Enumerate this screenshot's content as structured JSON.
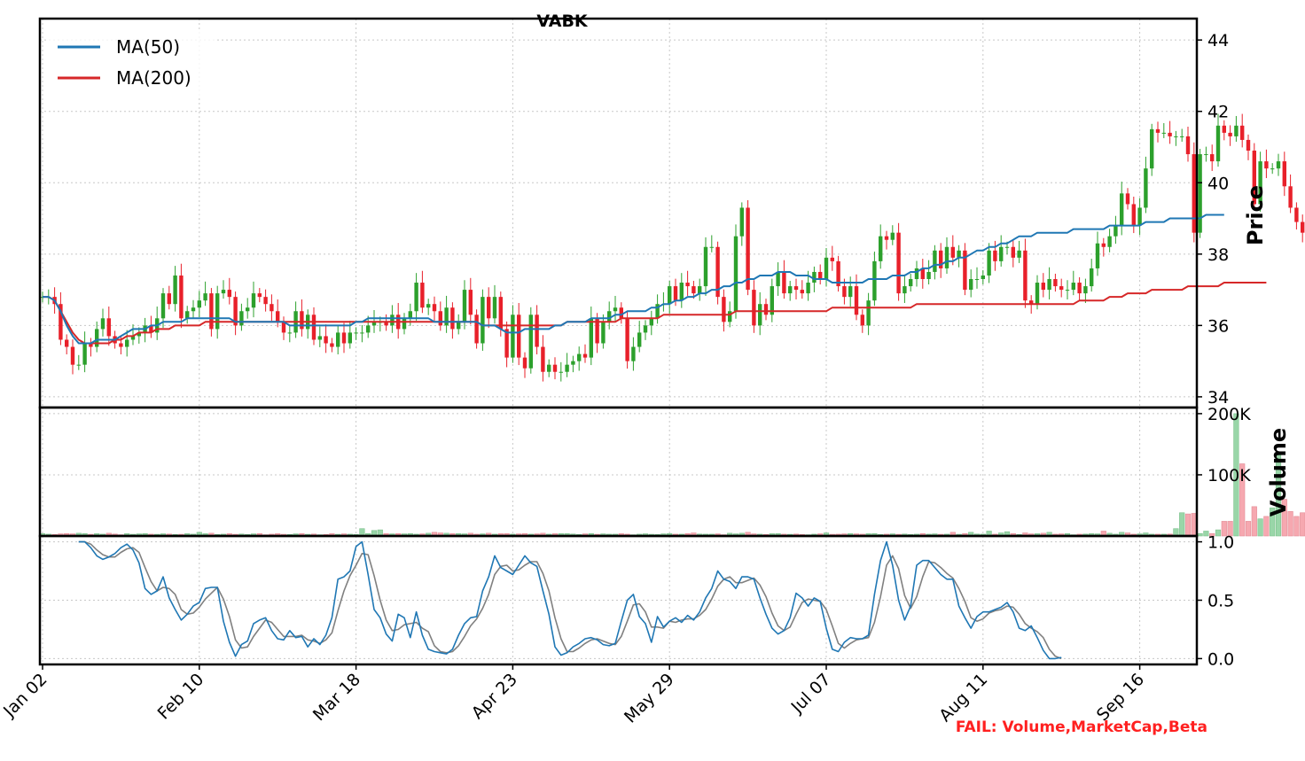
{
  "chart_data": {
    "type": "candlestick",
    "title": "VABK",
    "x_tick_labels": [
      "Jan 02",
      "Feb 10",
      "Mar 18",
      "Apr 23",
      "May 29",
      "Jul 07",
      "Aug 11",
      "Sep 16"
    ],
    "x_tick_sessions": [
      0,
      26,
      52,
      78,
      104,
      130,
      156,
      182
    ],
    "colors": {
      "up": "#2ca02c",
      "down": "#e8202a",
      "ma50": "#1f77b4",
      "ma200": "#d62728",
      "stoch_k": "#1f77b4",
      "stoch_d": "#808080",
      "failure": "#ff2020"
    },
    "price_panel": {
      "ylabel": "Price",
      "ylim": [
        33.7,
        44.6
      ],
      "yticks": [
        34,
        36,
        38,
        40,
        42,
        44
      ],
      "legend": {
        "placement": "top-left",
        "entries": [
          "MA(50)",
          "MA(200)"
        ]
      },
      "closes": [
        36.8,
        36.8,
        36.6,
        35.6,
        35.4,
        34.9,
        34.9,
        35.5,
        35.4,
        35.9,
        36.2,
        35.7,
        35.5,
        35.4,
        35.6,
        35.7,
        35.8,
        36.0,
        35.8,
        36.2,
        36.9,
        36.6,
        37.4,
        36.2,
        36.4,
        36.5,
        36.7,
        36.9,
        35.9,
        36.9,
        37.0,
        36.8,
        36.0,
        36.4,
        36.5,
        36.9,
        36.8,
        36.6,
        36.4,
        36.1,
        35.8,
        35.8,
        36.4,
        35.9,
        36.3,
        35.6,
        35.7,
        35.5,
        35.4,
        35.8,
        35.5,
        35.8,
        35.8,
        35.8,
        36.0,
        36.1,
        36.1,
        36.0,
        36.3,
        35.9,
        36.2,
        36.4,
        37.2,
        36.5,
        36.6,
        36.4,
        36.0,
        36.5,
        35.9,
        36.1,
        37.0,
        36.3,
        35.5,
        36.8,
        36.2,
        36.8,
        35.9,
        35.1,
        36.3,
        35.1,
        34.8,
        36.3,
        35.4,
        34.7,
        34.9,
        34.7,
        34.7,
        34.9,
        35.0,
        35.2,
        35.1,
        36.2,
        35.5,
        36.1,
        36.4,
        36.5,
        36.2,
        35.0,
        35.4,
        35.8,
        36.0,
        36.2,
        36.6,
        36.6,
        37.1,
        36.7,
        37.2,
        37.1,
        36.9,
        37.1,
        38.2,
        38.2,
        36.8,
        36.1,
        36.4,
        38.5,
        39.3,
        37.0,
        36.0,
        36.6,
        36.3,
        37.1,
        37.5,
        36.9,
        37.1,
        37.0,
        36.9,
        37.2,
        37.5,
        37.3,
        37.9,
        37.8,
        37.1,
        36.8,
        37.1,
        36.3,
        36.0,
        36.7,
        37.8,
        38.5,
        38.4,
        38.6,
        36.9,
        37.1,
        37.3,
        37.6,
        37.3,
        37.5,
        38.1,
        37.6,
        38.2,
        37.9,
        38.1,
        37.0,
        37.3,
        37.3,
        37.4,
        38.1,
        37.8,
        38.2,
        38.2,
        37.9,
        38.1,
        36.7,
        36.6,
        37.2,
        37.0,
        37.3,
        37.1,
        37.0,
        37.0,
        37.2,
        36.9,
        37.1,
        37.6,
        38.3,
        38.2,
        38.5,
        38.8,
        39.7,
        39.4,
        38.8,
        39.3,
        40.4,
        41.5,
        41.4,
        41.4,
        41.3,
        41.3,
        41.3,
        40.8,
        38.6,
        40.8,
        40.8,
        40.6,
        41.6,
        41.4,
        41.3,
        41.6,
        41.2,
        40.9,
        39.4,
        40.6,
        40.4,
        40.4,
        40.6,
        39.9,
        39.3,
        38.9,
        38.6,
        38.8,
        38.9,
        38.4,
        38.3,
        38.6
      ],
      "ma50": [
        36.8,
        36.8,
        36.7,
        36.4,
        36.0,
        35.7,
        35.5,
        35.5,
        35.5,
        35.6,
        35.6,
        35.6,
        35.6,
        35.7,
        35.8,
        35.9,
        35.9,
        35.9,
        36.0,
        36.0,
        36.1,
        36.1,
        36.1,
        36.1,
        36.2,
        36.2,
        36.2,
        36.2,
        36.2,
        36.2,
        36.2,
        36.2,
        36.1,
        36.1,
        36.1,
        36.1,
        36.1,
        36.1,
        36.1,
        36.1,
        36.1,
        36.0,
        36.0,
        36.0,
        36.0,
        36.0,
        36.0,
        36.0,
        36.0,
        36.0,
        36.0,
        36.0,
        36.1,
        36.1,
        36.2,
        36.2,
        36.2,
        36.2,
        36.2,
        36.2,
        36.2,
        36.2,
        36.2,
        36.2,
        36.2,
        36.1,
        36.1,
        36.1,
        36.1,
        36.1,
        36.1,
        36.1,
        36.1,
        36.0,
        36.0,
        36.0,
        35.9,
        35.8,
        35.8,
        35.8,
        35.9,
        35.9,
        35.9,
        35.9,
        35.9,
        36.0,
        36.0,
        36.1,
        36.1,
        36.1,
        36.1,
        36.2,
        36.2,
        36.2,
        36.2,
        36.3,
        36.3,
        36.4,
        36.4,
        36.4,
        36.4,
        36.5,
        36.5,
        36.6,
        36.6,
        36.7,
        36.7,
        36.8,
        36.8,
        36.9,
        36.9,
        37.0,
        37.0,
        37.1,
        37.1,
        37.2,
        37.2,
        37.3,
        37.3,
        37.4,
        37.4,
        37.4,
        37.5,
        37.5,
        37.5,
        37.4,
        37.4,
        37.4,
        37.3,
        37.3,
        37.3,
        37.2,
        37.2,
        37.2,
        37.2,
        37.2,
        37.2,
        37.3,
        37.3,
        37.3,
        37.3,
        37.4,
        37.4,
        37.4,
        37.5,
        37.5,
        37.6,
        37.6,
        37.7,
        37.7,
        37.8,
        37.8,
        37.9,
        37.9,
        38.0,
        38.1,
        38.1,
        38.2,
        38.2,
        38.3,
        38.3,
        38.4,
        38.5,
        38.5,
        38.5,
        38.6,
        38.6,
        38.6,
        38.6,
        38.6,
        38.6,
        38.7,
        38.7,
        38.7,
        38.7,
        38.7,
        38.7,
        38.8,
        38.8,
        38.8,
        38.8,
        38.8,
        38.8,
        38.9,
        38.9,
        38.9,
        38.9,
        39.0,
        39.0,
        39.0,
        39.0,
        39.0,
        39.0,
        39.1,
        39.1,
        39.1,
        39.1
      ],
      "ma200": [
        36.8,
        36.8,
        36.7,
        36.4,
        36.1,
        35.8,
        35.6,
        35.5,
        35.5,
        35.5,
        35.5,
        35.5,
        35.6,
        35.6,
        35.7,
        35.7,
        35.8,
        35.8,
        35.8,
        35.9,
        35.9,
        35.9,
        36.0,
        36.0,
        36.0,
        36.0,
        36.0,
        36.1,
        36.1,
        36.1,
        36.1,
        36.1,
        36.1,
        36.1,
        36.1,
        36.1,
        36.1,
        36.1,
        36.1,
        36.1,
        36.1,
        36.1,
        36.1,
        36.1,
        36.1,
        36.1,
        36.1,
        36.1,
        36.1,
        36.1,
        36.1,
        36.1,
        36.1,
        36.1,
        36.1,
        36.1,
        36.1,
        36.1,
        36.1,
        36.1,
        36.1,
        36.1,
        36.1,
        36.1,
        36.1,
        36.1,
        36.1,
        36.1,
        36.1,
        36.1,
        36.1,
        36.1,
        36.1,
        36.0,
        36.0,
        36.0,
        36.0,
        36.0,
        36.0,
        36.0,
        36.0,
        36.0,
        36.0,
        36.0,
        36.0,
        36.0,
        36.0,
        36.1,
        36.1,
        36.1,
        36.1,
        36.1,
        36.1,
        36.1,
        36.1,
        36.1,
        36.2,
        36.2,
        36.2,
        36.2,
        36.2,
        36.2,
        36.2,
        36.3,
        36.3,
        36.3,
        36.3,
        36.3,
        36.3,
        36.3,
        36.3,
        36.3,
        36.3,
        36.3,
        36.3,
        36.4,
        36.4,
        36.4,
        36.4,
        36.4,
        36.4,
        36.4,
        36.4,
        36.4,
        36.4,
        36.4,
        36.4,
        36.4,
        36.4,
        36.4,
        36.4,
        36.5,
        36.5,
        36.5,
        36.5,
        36.5,
        36.5,
        36.5,
        36.5,
        36.5,
        36.5,
        36.5,
        36.5,
        36.5,
        36.5,
        36.6,
        36.6,
        36.6,
        36.6,
        36.6,
        36.6,
        36.6,
        36.6,
        36.6,
        36.6,
        36.6,
        36.6,
        36.6,
        36.6,
        36.6,
        36.6,
        36.6,
        36.6,
        36.6,
        36.6,
        36.6,
        36.6,
        36.6,
        36.6,
        36.6,
        36.6,
        36.6,
        36.7,
        36.7,
        36.7,
        36.7,
        36.7,
        36.8,
        36.8,
        36.8,
        36.9,
        36.9,
        36.9,
        36.9,
        37.0,
        37.0,
        37.0,
        37.0,
        37.0,
        37.0,
        37.1,
        37.1,
        37.1,
        37.1,
        37.1,
        37.1,
        37.2,
        37.2,
        37.2,
        37.2,
        37.2,
        37.2,
        37.2,
        37.2
      ]
    },
    "volume_panel": {
      "ylabel": "Volume",
      "ylim": [
        0,
        210000
      ],
      "yticks": [
        100000,
        200000
      ],
      "ytick_labels": [
        "100K",
        "200K"
      ],
      "values": [
        4000,
        3000,
        2500,
        3500,
        4000,
        3500,
        4500,
        4000,
        2800,
        3800,
        3000,
        4500,
        3200,
        2000,
        3800,
        2800,
        3500,
        4000,
        3000,
        2800,
        3600,
        3200,
        2500,
        2800,
        3800,
        3000,
        6000,
        3800,
        4500,
        2500,
        3000,
        3800,
        2800,
        3200,
        2500,
        3500,
        4000,
        2000,
        3000,
        3800,
        2800,
        2500,
        3500,
        4000,
        2800,
        3200,
        2000,
        2500,
        3800,
        2800,
        3500,
        3000,
        2500,
        12000,
        4000,
        9000,
        10000,
        4000,
        3500,
        4000,
        3500,
        4000,
        3000,
        3500,
        4500,
        6000,
        5000,
        4500,
        4000,
        4000,
        3500,
        4500,
        3000,
        3500,
        4500,
        3000,
        3800,
        4000,
        3000,
        3500,
        4000,
        3000,
        3500,
        4500,
        3000,
        3800,
        4000,
        4000,
        3200,
        2500,
        3500,
        4000,
        2800,
        3500,
        3000,
        3000,
        3800,
        3000,
        2000,
        3000,
        3600,
        2800,
        2500,
        3500,
        4000,
        3000,
        3000,
        4000,
        5000,
        3200,
        3000,
        3000,
        3500,
        2000,
        4500,
        3500,
        4500,
        6000,
        3500,
        3000,
        2500,
        3800,
        4000,
        3000,
        2800,
        3200,
        2500,
        2000,
        3000,
        3600,
        5000,
        2800,
        3000,
        3500,
        4000,
        3500,
        3000,
        3800,
        4000,
        2500,
        3000,
        3500,
        2800,
        3200,
        2500,
        3000,
        4000,
        3000,
        3500,
        2800,
        3000,
        6000,
        2800,
        4000,
        6000,
        3200,
        3000,
        8000,
        3000,
        5000,
        7000,
        4000,
        2500,
        5000,
        3500,
        3800,
        4500,
        6000,
        3000,
        3500,
        4000,
        2000,
        3000,
        3200,
        4000,
        3500,
        8000,
        4500,
        3000,
        6000,
        5000,
        3000,
        3500,
        5000,
        3000,
        3000,
        3000,
        3200,
        12000,
        38000,
        36000,
        37000,
        4000,
        8000,
        4000,
        10000,
        24000,
        24000,
        200000,
        118000,
        24000,
        48000,
        28000,
        32000,
        46000,
        132000,
        60000,
        40000,
        32000,
        38000,
        26000,
        20000,
        18000,
        20000,
        18000,
        12000,
        12000,
        88000,
        92000,
        28000,
        16000,
        14000,
        12000,
        8000,
        6000,
        4000
      ]
    },
    "stoch_panel": {
      "ylim": [
        -0.05,
        1.05
      ],
      "yticks": [
        0.0,
        0.5,
        1.0
      ],
      "ytick_labels": [
        "0.0",
        "0.5",
        "1.0"
      ],
      "k": [
        null,
        null,
        null,
        null,
        null,
        null,
        1.0,
        1.0,
        0.95,
        0.88,
        0.85,
        0.87,
        0.9,
        0.95,
        0.98,
        0.93,
        0.82,
        0.6,
        0.55,
        0.58,
        0.7,
        0.52,
        0.42,
        0.33,
        0.38,
        0.45,
        0.48,
        0.6,
        0.61,
        0.61,
        0.32,
        0.14,
        0.02,
        0.12,
        0.15,
        0.3,
        0.33,
        0.35,
        0.24,
        0.17,
        0.16,
        0.24,
        0.18,
        0.19,
        0.1,
        0.17,
        0.12,
        0.2,
        0.35,
        0.68,
        0.7,
        0.75,
        0.96,
        1.0,
        0.72,
        0.42,
        0.35,
        0.21,
        0.15,
        0.38,
        0.35,
        0.18,
        0.4,
        0.2,
        0.08,
        0.06,
        0.05,
        0.04,
        0.08,
        0.2,
        0.3,
        0.35,
        0.36,
        0.58,
        0.7,
        0.88,
        0.78,
        0.75,
        0.72,
        0.8,
        0.88,
        0.82,
        0.79,
        0.58,
        0.38,
        0.1,
        0.03,
        0.05,
        0.1,
        0.13,
        0.17,
        0.18,
        0.16,
        0.12,
        0.11,
        0.13,
        0.32,
        0.5,
        0.55,
        0.36,
        0.3,
        0.14,
        0.36,
        0.27,
        0.32,
        0.35,
        0.31,
        0.37,
        0.33,
        0.4,
        0.52,
        0.6,
        0.75,
        0.68,
        0.66,
        0.6,
        0.7,
        0.7,
        0.68,
        0.52,
        0.38,
        0.26,
        0.21,
        0.24,
        0.35,
        0.56,
        0.52,
        0.45,
        0.52,
        0.49,
        0.26,
        0.08,
        0.06,
        0.14,
        0.18,
        0.17,
        0.17,
        0.2,
        0.55,
        0.84,
        1.0,
        0.8,
        0.5,
        0.33,
        0.45,
        0.8,
        0.84,
        0.84,
        0.78,
        0.72,
        0.68,
        0.68,
        0.45,
        0.35,
        0.26,
        0.36,
        0.4,
        0.4,
        0.42,
        0.44,
        0.48,
        0.4,
        0.26,
        0.24,
        0.28,
        0.18,
        0.07,
        0.0,
        0.0,
        0.01
      ],
      "d": [
        null,
        null,
        null,
        null,
        null,
        null,
        1.0,
        1.0,
        0.98,
        0.93,
        0.89,
        0.87,
        0.87,
        0.91,
        0.94,
        0.95,
        0.91,
        0.78,
        0.66,
        0.58,
        0.61,
        0.6,
        0.55,
        0.42,
        0.38,
        0.39,
        0.44,
        0.51,
        0.56,
        0.61,
        0.51,
        0.36,
        0.16,
        0.09,
        0.1,
        0.19,
        0.26,
        0.33,
        0.31,
        0.25,
        0.19,
        0.19,
        0.19,
        0.2,
        0.16,
        0.15,
        0.13,
        0.16,
        0.22,
        0.41,
        0.58,
        0.71,
        0.8,
        0.9,
        0.89,
        0.71,
        0.5,
        0.33,
        0.24,
        0.25,
        0.29,
        0.3,
        0.31,
        0.26,
        0.23,
        0.11,
        0.06,
        0.05,
        0.06,
        0.11,
        0.19,
        0.28,
        0.34,
        0.43,
        0.55,
        0.72,
        0.79,
        0.8,
        0.75,
        0.76,
        0.8,
        0.83,
        0.83,
        0.73,
        0.58,
        0.35,
        0.17,
        0.06,
        0.06,
        0.09,
        0.13,
        0.16,
        0.17,
        0.15,
        0.13,
        0.12,
        0.19,
        0.32,
        0.46,
        0.47,
        0.4,
        0.27,
        0.27,
        0.26,
        0.32,
        0.31,
        0.33,
        0.34,
        0.34,
        0.37,
        0.42,
        0.51,
        0.62,
        0.68,
        0.7,
        0.65,
        0.65,
        0.67,
        0.69,
        0.63,
        0.53,
        0.39,
        0.28,
        0.24,
        0.27,
        0.38,
        0.48,
        0.51,
        0.5,
        0.49,
        0.42,
        0.28,
        0.13,
        0.09,
        0.13,
        0.16,
        0.17,
        0.18,
        0.31,
        0.53,
        0.8,
        0.88,
        0.77,
        0.54,
        0.43,
        0.53,
        0.7,
        0.83,
        0.82,
        0.78,
        0.73,
        0.69,
        0.6,
        0.49,
        0.35,
        0.32,
        0.34,
        0.39,
        0.41,
        0.42,
        0.45,
        0.44,
        0.38,
        0.3,
        0.26,
        0.23,
        0.18,
        0.08,
        0.02,
        0.0
      ]
    },
    "annotation": "FAIL: Volume,MarketCap,Beta"
  }
}
